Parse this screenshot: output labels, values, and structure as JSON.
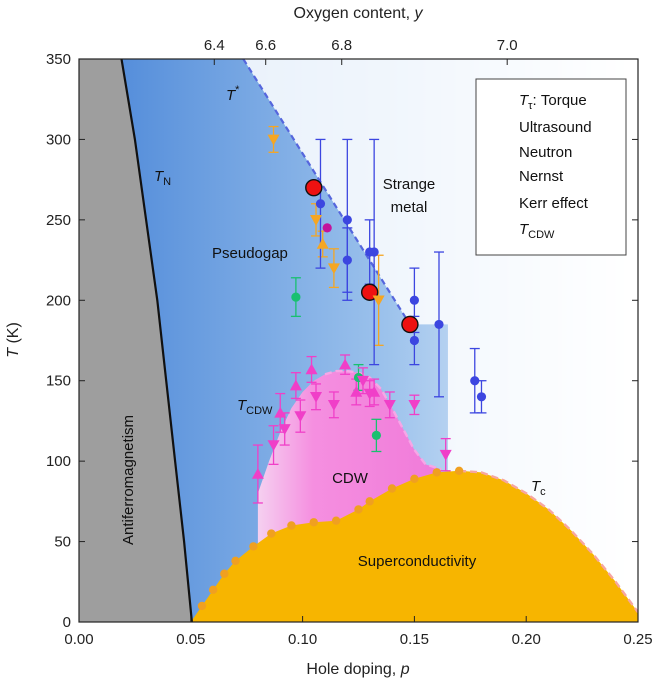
{
  "chart_data": {
    "type": "scatter",
    "xlabel_prefix": "Hole doping, ",
    "xlabel_var": "p",
    "ylabel_var": "T",
    "ylabel_suffix": " (K)",
    "top_xlabel_prefix": "Oxygen content, ",
    "top_xlabel_var": "y",
    "xlim": [
      0.0,
      0.25
    ],
    "ylim": [
      0,
      350
    ],
    "x_ticks": [
      {
        "v": 0.0,
        "label": "0.00"
      },
      {
        "v": 0.05,
        "label": "0.05"
      },
      {
        "v": 0.1,
        "label": "0.10"
      },
      {
        "v": 0.15,
        "label": "0.15"
      },
      {
        "v": 0.2,
        "label": "0.20"
      },
      {
        "v": 0.25,
        "label": "0.25"
      }
    ],
    "y_ticks": [
      {
        "v": 0,
        "label": "0"
      },
      {
        "v": 50,
        "label": "50"
      },
      {
        "v": 100,
        "label": "100"
      },
      {
        "v": 150,
        "label": "150"
      },
      {
        "v": 200,
        "label": "200"
      },
      {
        "v": 250,
        "label": "250"
      },
      {
        "v": 300,
        "label": "300"
      },
      {
        "v": 350,
        "label": "350"
      }
    ],
    "top_ticks": [
      {
        "p": 0.0605,
        "label": "6.4"
      },
      {
        "p": 0.0835,
        "label": "6.6"
      },
      {
        "p": 0.1175,
        "label": "6.8"
      },
      {
        "p": 0.1915,
        "label": "7.0"
      }
    ],
    "region_labels": {
      "antiferromagnetism": "Antiferromagnetism",
      "pseudogap": "Pseudogap",
      "strange_metal_1": "Strange",
      "strange_metal_2": "metal",
      "cdw": "CDW",
      "superconductivity": "Superconductivity"
    },
    "line_labels": {
      "tn_main": "T",
      "tn_sub": "N",
      "tstar_main": "T",
      "tstar_sup": "*",
      "tcdw_main": "T",
      "tcdw_sub": "CDW",
      "tc_main": "T",
      "tc_sub": "c"
    },
    "curves": {
      "tn": [
        [
          0.019,
          350
        ],
        [
          0.025,
          300
        ],
        [
          0.03,
          250
        ],
        [
          0.035,
          200
        ],
        [
          0.039,
          150
        ],
        [
          0.043,
          100
        ],
        [
          0.047,
          50
        ],
        [
          0.0505,
          0
        ]
      ],
      "tstar": [
        [
          0.0735,
          350
        ],
        [
          0.148,
          185
        ]
      ],
      "tc": [
        [
          0.05,
          0
        ],
        [
          0.055,
          10
        ],
        [
          0.06,
          20
        ],
        [
          0.065,
          30
        ],
        [
          0.07,
          38
        ],
        [
          0.078,
          47
        ],
        [
          0.086,
          55
        ],
        [
          0.095,
          60
        ],
        [
          0.105,
          62
        ],
        [
          0.115,
          63
        ],
        [
          0.125,
          70
        ],
        [
          0.13,
          75
        ],
        [
          0.14,
          83
        ],
        [
          0.15,
          89
        ],
        [
          0.16,
          93
        ],
        [
          0.17,
          94
        ],
        [
          0.18,
          93
        ],
        [
          0.19,
          88
        ],
        [
          0.2,
          80
        ],
        [
          0.21,
          70
        ],
        [
          0.22,
          57
        ],
        [
          0.23,
          42
        ],
        [
          0.24,
          25
        ],
        [
          0.25,
          6
        ]
      ],
      "tcdw": [
        [
          0.08,
          80
        ],
        [
          0.085,
          100
        ],
        [
          0.09,
          118
        ],
        [
          0.095,
          133
        ],
        [
          0.1,
          143
        ],
        [
          0.105,
          150
        ],
        [
          0.11,
          154
        ],
        [
          0.115,
          156
        ],
        [
          0.12,
          156
        ],
        [
          0.125,
          155
        ],
        [
          0.13,
          152
        ],
        [
          0.135,
          145
        ],
        [
          0.14,
          133
        ],
        [
          0.145,
          120
        ],
        [
          0.15,
          107
        ],
        [
          0.155,
          98
        ],
        [
          0.162,
          95
        ]
      ]
    },
    "tc_dots": [
      [
        0.055,
        10
      ],
      [
        0.06,
        20
      ],
      [
        0.065,
        30
      ],
      [
        0.07,
        38
      ],
      [
        0.078,
        47
      ],
      [
        0.086,
        55
      ],
      [
        0.095,
        60
      ],
      [
        0.105,
        62
      ],
      [
        0.115,
        63
      ],
      [
        0.125,
        70
      ],
      [
        0.13,
        75
      ],
      [
        0.14,
        83
      ],
      [
        0.15,
        89
      ],
      [
        0.16,
        93
      ],
      [
        0.17,
        94
      ]
    ],
    "legend": [
      {
        "key": "torque",
        "main": "T",
        "sub": "τ",
        "rest": ": Torque",
        "color": "#ee1111",
        "marker": "circle-large"
      },
      {
        "key": "ultrasound",
        "text": "Ultrasound",
        "color": "#c3139c",
        "marker": "circle"
      },
      {
        "key": "neutron",
        "text": "Neutron",
        "color": "#f5a623",
        "marker": "triangles"
      },
      {
        "key": "nernst",
        "text": "Nernst",
        "color": "#3c46e0",
        "marker": "circle"
      },
      {
        "key": "kerr",
        "text": "Kerr effect",
        "color": "#19c070",
        "marker": "circle"
      },
      {
        "key": "tcdw",
        "main": "T",
        "sub": "CDW",
        "rest": "",
        "color": "#f03fc8",
        "marker": "triangles"
      }
    ],
    "series": [
      {
        "name": "torque",
        "marker": "circle-large",
        "color": "#ee1111",
        "points": [
          [
            0.105,
            270
          ],
          [
            0.13,
            205
          ],
          [
            0.148,
            185
          ]
        ]
      },
      {
        "name": "ultrasound",
        "marker": "circle",
        "color": "#c3139c",
        "points": [
          [
            0.111,
            245
          ]
        ]
      },
      {
        "name": "neutron",
        "marker": "triangle-down",
        "color": "#f5a623",
        "points": [
          [
            0.087,
            300,
            8
          ],
          [
            0.106,
            250,
            10
          ],
          [
            0.114,
            220,
            12
          ],
          [
            0.134,
            200,
            28
          ]
        ]
      },
      {
        "name": "neutron-up",
        "marker": "triangle-up",
        "color": "#f5a623",
        "points": [
          [
            0.109,
            235,
            8
          ]
        ]
      },
      {
        "name": "nernst",
        "marker": "circle",
        "color": "#3c46e0",
        "points": [
          [
            0.108,
            260,
            40
          ],
          [
            0.12,
            250,
            50
          ],
          [
            0.12,
            225,
            20
          ],
          [
            0.13,
            230,
            20
          ],
          [
            0.132,
            230,
            70
          ],
          [
            0.15,
            200,
            20
          ],
          [
            0.15,
            175,
            15
          ],
          [
            0.161,
            185,
            45
          ],
          [
            0.177,
            150,
            20
          ],
          [
            0.18,
            140,
            10
          ]
        ]
      },
      {
        "name": "kerr",
        "marker": "circle",
        "color": "#19c070",
        "points": [
          [
            0.097,
            202,
            12
          ],
          [
            0.125,
            152,
            8
          ],
          [
            0.133,
            116,
            10
          ]
        ]
      },
      {
        "name": "tcdw-up",
        "marker": "triangle-up",
        "color": "#f03fc8",
        "points": [
          [
            0.08,
            92,
            18
          ],
          [
            0.09,
            130,
            12
          ],
          [
            0.097,
            147,
            8
          ],
          [
            0.104,
            157,
            8
          ],
          [
            0.119,
            160,
            6
          ],
          [
            0.124,
            143,
            8
          ],
          [
            0.132,
            143,
            8
          ]
        ]
      },
      {
        "name": "tcdw-down",
        "marker": "triangle-down",
        "color": "#f03fc8",
        "points": [
          [
            0.087,
            110,
            12
          ],
          [
            0.092,
            120,
            10
          ],
          [
            0.099,
            128,
            10
          ],
          [
            0.106,
            140,
            8
          ],
          [
            0.114,
            135,
            8
          ],
          [
            0.127,
            150,
            8
          ],
          [
            0.13,
            142,
            8
          ],
          [
            0.139,
            135,
            8
          ],
          [
            0.15,
            135,
            6
          ],
          [
            0.164,
            104,
            10
          ]
        ]
      }
    ]
  }
}
